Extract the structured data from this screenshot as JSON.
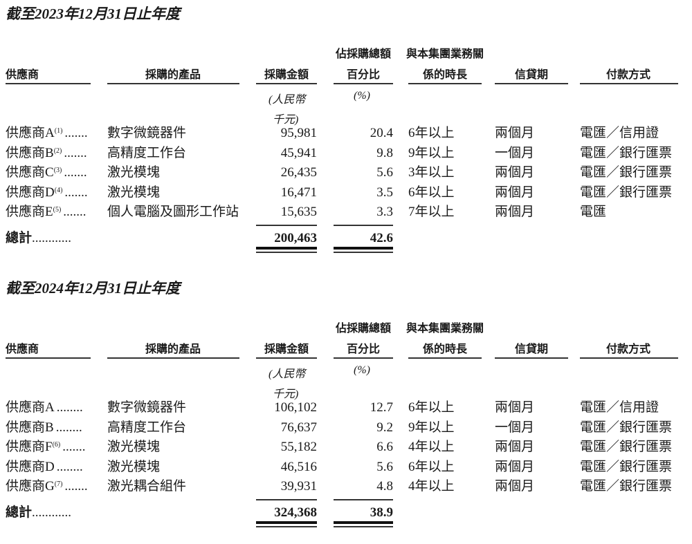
{
  "sections": [
    {
      "title": "截至2023年12月31日止年度",
      "headers": {
        "supplier": "供應商",
        "product": "採購的產品",
        "amount": "採購金額",
        "percent_line1": "佔採購總額",
        "percent_line2": "百分比",
        "tenure_line1": "與本集團業務關",
        "tenure_line2": "係的時長",
        "credit": "信貸期",
        "payment": "付款方式"
      },
      "units": {
        "amount_line1": "(人民幣",
        "amount_line2": "千元)",
        "percent": "(%)"
      },
      "rows": [
        {
          "supplier": "供應商A",
          "footnote": "(1)",
          "dots": ".......",
          "product": "數字微鏡器件",
          "amount": "95,981",
          "percent": "20.4",
          "tenure": "6年以上",
          "credit": "兩個月",
          "payment": "電匯／信用證"
        },
        {
          "supplier": "供應商B",
          "footnote": "(2)",
          "dots": ".......",
          "product": "高精度工作台",
          "amount": "45,941",
          "percent": "9.8",
          "tenure": "9年以上",
          "credit": "一個月",
          "payment": "電匯／銀行匯票"
        },
        {
          "supplier": "供應商C",
          "footnote": "(3)",
          "dots": ".......",
          "product": "激光模塊",
          "amount": "26,435",
          "percent": "5.6",
          "tenure": "3年以上",
          "credit": "兩個月",
          "payment": "電匯／銀行匯票"
        },
        {
          "supplier": "供應商D",
          "footnote": "(4)",
          "dots": ".......",
          "product": "激光模塊",
          "amount": "16,471",
          "percent": "3.5",
          "tenure": "6年以上",
          "credit": "兩個月",
          "payment": "電匯／銀行匯票"
        },
        {
          "supplier": "供應商E",
          "footnote": "(5)",
          "dots": ".......",
          "product": "個人電腦及圖形工作站",
          "amount": "15,635",
          "percent": "3.3",
          "tenure": "7年以上",
          "credit": "兩個月",
          "payment": "電匯"
        }
      ],
      "total": {
        "label": "總計",
        "dots": "............",
        "amount": "200,463",
        "percent": "42.6"
      }
    },
    {
      "title": "截至2024年12月31日止年度",
      "headers": {
        "supplier": "供應商",
        "product": "採購的產品",
        "amount": "採購金額",
        "percent_line1": "佔採購總額",
        "percent_line2": "百分比",
        "tenure_line1": "與本集團業務關",
        "tenure_line2": "係的時長",
        "credit": "信貸期",
        "payment": "付款方式"
      },
      "units": {
        "amount_line1": "(人民幣",
        "amount_line2": "千元)",
        "percent": "(%)"
      },
      "rows": [
        {
          "supplier": "供應商A",
          "footnote": "",
          "dots": "........",
          "product": "數字微鏡器件",
          "amount": "106,102",
          "percent": "12.7",
          "tenure": "6年以上",
          "credit": "兩個月",
          "payment": "電匯／信用證"
        },
        {
          "supplier": "供應商B",
          "footnote": "",
          "dots": "........",
          "product": "高精度工作台",
          "amount": "76,637",
          "percent": "9.2",
          "tenure": "9年以上",
          "credit": "一個月",
          "payment": "電匯／銀行匯票"
        },
        {
          "supplier": "供應商F",
          "footnote": "(6)",
          "dots": ".......",
          "product": "激光模塊",
          "amount": "55,182",
          "percent": "6.6",
          "tenure": "4年以上",
          "credit": "兩個月",
          "payment": "電匯／銀行匯票"
        },
        {
          "supplier": "供應商D",
          "footnote": "",
          "dots": "........",
          "product": "激光模塊",
          "amount": "46,516",
          "percent": "5.6",
          "tenure": "6年以上",
          "credit": "兩個月",
          "payment": "電匯／銀行匯票"
        },
        {
          "supplier": "供應商G",
          "footnote": "(7)",
          "dots": ".......",
          "product": "激光耦合組件",
          "amount": "39,931",
          "percent": "4.8",
          "tenure": "4年以上",
          "credit": "兩個月",
          "payment": "電匯／銀行匯票"
        }
      ],
      "total": {
        "label": "總計",
        "dots": "............",
        "amount": "324,368",
        "percent": "38.9"
      }
    }
  ]
}
